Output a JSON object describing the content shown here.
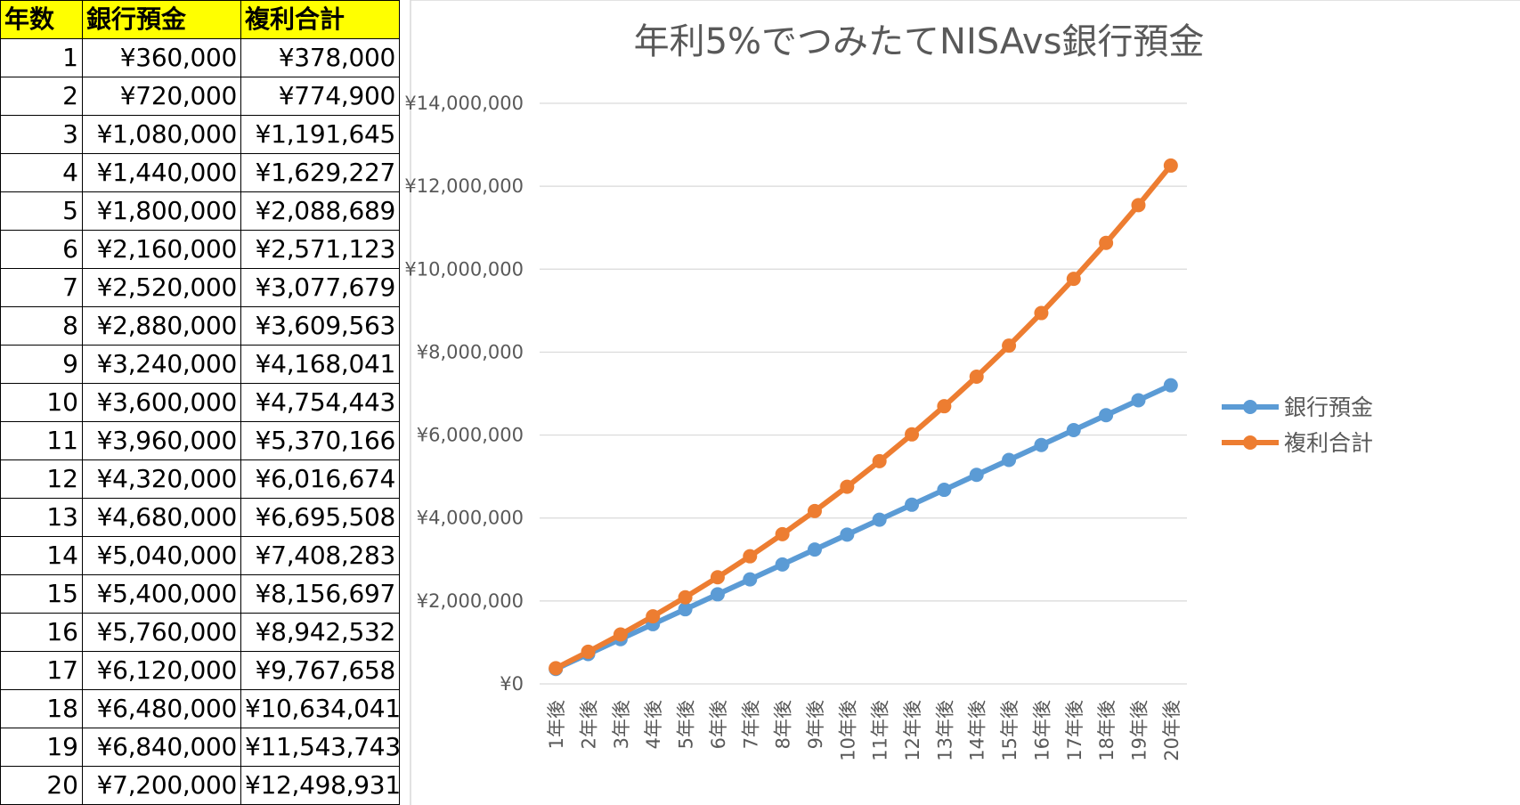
{
  "table": {
    "headers": [
      "年数",
      "銀行預金",
      "複利合計"
    ],
    "rows": [
      [
        "1",
        "¥360,000",
        "¥378,000"
      ],
      [
        "2",
        "¥720,000",
        "¥774,900"
      ],
      [
        "3",
        "¥1,080,000",
        "¥1,191,645"
      ],
      [
        "4",
        "¥1,440,000",
        "¥1,629,227"
      ],
      [
        "5",
        "¥1,800,000",
        "¥2,088,689"
      ],
      [
        "6",
        "¥2,160,000",
        "¥2,571,123"
      ],
      [
        "7",
        "¥2,520,000",
        "¥3,077,679"
      ],
      [
        "8",
        "¥2,880,000",
        "¥3,609,563"
      ],
      [
        "9",
        "¥3,240,000",
        "¥4,168,041"
      ],
      [
        "10",
        "¥3,600,000",
        "¥4,754,443"
      ],
      [
        "11",
        "¥3,960,000",
        "¥5,370,166"
      ],
      [
        "12",
        "¥4,320,000",
        "¥6,016,674"
      ],
      [
        "13",
        "¥4,680,000",
        "¥6,695,508"
      ],
      [
        "14",
        "¥5,040,000",
        "¥7,408,283"
      ],
      [
        "15",
        "¥5,400,000",
        "¥8,156,697"
      ],
      [
        "16",
        "¥5,760,000",
        "¥8,942,532"
      ],
      [
        "17",
        "¥6,120,000",
        "¥9,767,658"
      ],
      [
        "18",
        "¥6,480,000",
        "¥10,634,041"
      ],
      [
        "19",
        "¥6,840,000",
        "¥11,543,743"
      ],
      [
        "20",
        "¥7,200,000",
        "¥12,498,931"
      ]
    ]
  },
  "colors": {
    "header_bg": "#ffff00",
    "bank_series": "#5b9bd5",
    "compound_series": "#ed7d31"
  },
  "chart_data": {
    "type": "line",
    "title": "年利5%でつみたてNISAvs銀行預金",
    "categories": [
      "1年後",
      "2年後",
      "3年後",
      "4年後",
      "5年後",
      "6年後",
      "7年後",
      "8年後",
      "9年後",
      "10年後",
      "11年後",
      "12年後",
      "13年後",
      "14年後",
      "15年後",
      "16年後",
      "17年後",
      "18年後",
      "19年後",
      "20年後"
    ],
    "series": [
      {
        "name": "銀行預金",
        "color": "#5b9bd5",
        "values": [
          360000,
          720000,
          1080000,
          1440000,
          1800000,
          2160000,
          2520000,
          2880000,
          3240000,
          3600000,
          3960000,
          4320000,
          4680000,
          5040000,
          5400000,
          5760000,
          6120000,
          6480000,
          6840000,
          7200000
        ]
      },
      {
        "name": "複利合計",
        "color": "#ed7d31",
        "values": [
          378000,
          774900,
          1191645,
          1629227,
          2088689,
          2571123,
          3077679,
          3609563,
          4168041,
          4754443,
          5370166,
          6016674,
          6695508,
          7408283,
          8156697,
          8942532,
          9767658,
          10634041,
          11543743,
          12498931
        ]
      }
    ],
    "ylim": [
      0,
      14000000
    ],
    "yticks": [
      0,
      2000000,
      4000000,
      6000000,
      8000000,
      10000000,
      12000000,
      14000000
    ],
    "ytick_labels": [
      "¥0",
      "¥2,000,000",
      "¥4,000,000",
      "¥6,000,000",
      "¥8,000,000",
      "¥10,000,000",
      "¥12,000,000",
      "¥14,000,000"
    ],
    "grid": true,
    "legend": "right"
  }
}
